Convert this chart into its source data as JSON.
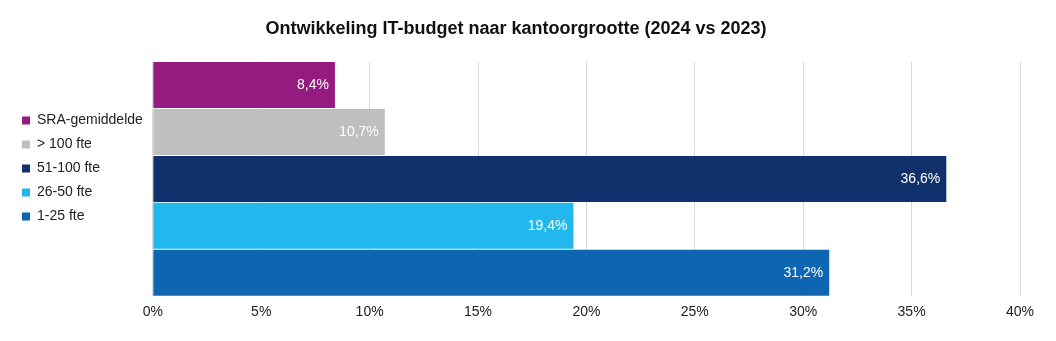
{
  "chart_data": {
    "type": "bar",
    "orientation": "horizontal",
    "title": "Ontwikkeling IT-budget naar kantoorgrootte (2024 vs 2023)",
    "categories": [
      null
    ],
    "series": [
      {
        "name": "SRA-gemiddelde",
        "color": "#951b81",
        "values": [
          8.4
        ],
        "value_labels": [
          "8,4%"
        ]
      },
      {
        "name": "> 100 fte",
        "color": "#bfbfbf",
        "values": [
          10.7
        ],
        "value_labels": [
          "10,7%"
        ]
      },
      {
        "name": "51-100 fte",
        "color": "#10316b",
        "values": [
          36.6
        ],
        "value_labels": [
          "36,6%"
        ]
      },
      {
        "name": "26-50 fte",
        "color": "#22b8ee",
        "values": [
          19.4
        ],
        "value_labels": [
          "19,4%"
        ]
      },
      {
        "name": "1-25 fte",
        "color": "#0e66b2",
        "values": [
          31.2
        ],
        "value_labels": [
          "31,2%"
        ]
      }
    ],
    "xlim": [
      0,
      40
    ],
    "xticks": [
      {
        "value": 0,
        "label": "0%"
      },
      {
        "value": 5,
        "label": "5%"
      },
      {
        "value": 10,
        "label": "10%"
      },
      {
        "value": 15,
        "label": "15%"
      },
      {
        "value": 20,
        "label": "20%"
      },
      {
        "value": 25,
        "label": "25%"
      },
      {
        "value": 30,
        "label": "30%"
      },
      {
        "value": 35,
        "label": "35%"
      },
      {
        "value": 40,
        "label": "40%"
      }
    ],
    "grid": "x",
    "legend": "left"
  }
}
